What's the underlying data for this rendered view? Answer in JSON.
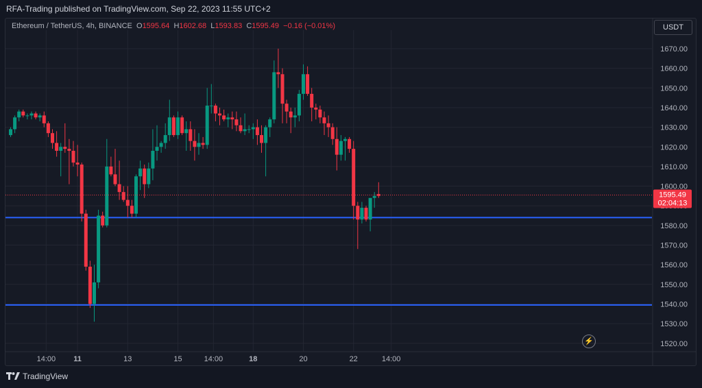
{
  "header": {
    "published_text": "RFA-Trading published on TradingView.com, Sep 22, 2023 11:55 UTC+2"
  },
  "legend": {
    "symbol": "Ethereum / TetherUS, 4h, BINANCE",
    "open_label": "O",
    "open": "1595.64",
    "high_label": "H",
    "high": "1602.68",
    "low_label": "L",
    "low": "1593.83",
    "close_label": "C",
    "close": "1595.49",
    "change": "−0.16 (−0.01%)"
  },
  "currency_button": "USDT",
  "price_tag": {
    "price": "1595.49",
    "countdown": "02:04:13"
  },
  "footer": {
    "brand": "TradingView"
  },
  "colors": {
    "up": "#089981",
    "down": "#f23645",
    "level_line": "#2962ff",
    "background": "#161a25"
  },
  "icons": {
    "replay": "lightning-bolt-icon",
    "logo": "tradingview-logo-icon"
  },
  "chart_data": {
    "type": "candlestick",
    "title": "Ethereum / TetherUS, 4h, BINANCE",
    "ylim": [
      1515,
      1680
    ],
    "y_ticks": [
      "1670.00",
      "1660.00",
      "1650.00",
      "1640.00",
      "1630.00",
      "1620.00",
      "1610.00",
      "1600.00",
      "1590.00",
      "1580.00",
      "1570.00",
      "1560.00",
      "1550.00",
      "1540.00",
      "1530.00",
      "1520.00"
    ],
    "x_ticks": [
      {
        "label": "14:00",
        "index": 8.5,
        "bold": false
      },
      {
        "label": "11",
        "index": 16,
        "bold": true
      },
      {
        "label": "13",
        "index": 28,
        "bold": false
      },
      {
        "label": "15",
        "index": 40,
        "bold": false
      },
      {
        "label": "14:00",
        "index": 48.5,
        "bold": false
      },
      {
        "label": "18",
        "index": 58,
        "bold": true
      },
      {
        "label": "20",
        "index": 70,
        "bold": false
      },
      {
        "label": "22",
        "index": 82,
        "bold": false
      },
      {
        "label": "14:00",
        "index": 91,
        "bold": false
      }
    ],
    "horizontal_levels": [
      1584,
      1539.5
    ],
    "last_price": 1595.49,
    "candles": [
      [
        1626,
        1630,
        1625,
        1629
      ],
      [
        1629,
        1636,
        1627,
        1635
      ],
      [
        1635,
        1639,
        1633,
        1638
      ],
      [
        1638,
        1639,
        1635,
        1636
      ],
      [
        1636,
        1637,
        1634,
        1636
      ],
      [
        1636,
        1638,
        1634,
        1637
      ],
      [
        1637,
        1638,
        1634,
        1635
      ],
      [
        1635,
        1637,
        1633,
        1636
      ],
      [
        1636,
        1638,
        1630,
        1632
      ],
      [
        1632,
        1633,
        1625,
        1627
      ],
      [
        1627,
        1629,
        1619,
        1622
      ],
      [
        1622,
        1628,
        1615,
        1618
      ],
      [
        1618,
        1622,
        1605,
        1620
      ],
      [
        1620,
        1632,
        1617,
        1619
      ],
      [
        1619,
        1624,
        1601,
        1618
      ],
      [
        1618,
        1623,
        1610,
        1612
      ],
      [
        1612,
        1621,
        1605,
        1611
      ],
      [
        1611,
        1612,
        1582,
        1586
      ],
      [
        1586,
        1588,
        1557,
        1559
      ],
      [
        1559,
        1562,
        1538,
        1540
      ],
      [
        1540,
        1560,
        1531,
        1551
      ],
      [
        1551,
        1588,
        1548,
        1585
      ],
      [
        1585,
        1587,
        1579,
        1580
      ],
      [
        1580,
        1624,
        1579,
        1610
      ],
      [
        1610,
        1615,
        1605,
        1606
      ],
      [
        1606,
        1619,
        1600,
        1601
      ],
      [
        1601,
        1613,
        1593,
        1597
      ],
      [
        1597,
        1600,
        1592,
        1593
      ],
      [
        1593,
        1600,
        1584,
        1590
      ],
      [
        1590,
        1593,
        1584,
        1586
      ],
      [
        1586,
        1606,
        1584,
        1605
      ],
      [
        1605,
        1613,
        1598,
        1609
      ],
      [
        1609,
        1611,
        1594,
        1601
      ],
      [
        1601,
        1612,
        1599,
        1609
      ],
      [
        1609,
        1629,
        1603,
        1618
      ],
      [
        1618,
        1631,
        1613,
        1620
      ],
      [
        1620,
        1623,
        1617,
        1622
      ],
      [
        1622,
        1632,
        1619,
        1626
      ],
      [
        1626,
        1644,
        1623,
        1635
      ],
      [
        1635,
        1636,
        1625,
        1626
      ],
      [
        1626,
        1638,
        1624,
        1635
      ],
      [
        1635,
        1636,
        1626,
        1627
      ],
      [
        1627,
        1633,
        1618,
        1629
      ],
      [
        1629,
        1633,
        1618,
        1623
      ],
      [
        1623,
        1629,
        1613,
        1620
      ],
      [
        1620,
        1627,
        1616,
        1622
      ],
      [
        1622,
        1625,
        1619,
        1621
      ],
      [
        1621,
        1650,
        1619,
        1641
      ],
      [
        1641,
        1652,
        1637,
        1641
      ],
      [
        1641,
        1642,
        1633,
        1637
      ],
      [
        1637,
        1640,
        1631,
        1636
      ],
      [
        1636,
        1639,
        1633,
        1634
      ],
      [
        1634,
        1637,
        1630,
        1635
      ],
      [
        1635,
        1638,
        1629,
        1634
      ],
      [
        1634,
        1638,
        1628,
        1631
      ],
      [
        1631,
        1635,
        1627,
        1628
      ],
      [
        1628,
        1637,
        1626,
        1629
      ],
      [
        1629,
        1631,
        1627,
        1629
      ],
      [
        1629,
        1632,
        1624,
        1630
      ],
      [
        1630,
        1634,
        1621,
        1626
      ],
      [
        1626,
        1631,
        1617,
        1622
      ],
      [
        1622,
        1631,
        1605,
        1630
      ],
      [
        1630,
        1635,
        1625,
        1634
      ],
      [
        1634,
        1664,
        1632,
        1658
      ],
      [
        1658,
        1670,
        1650,
        1657
      ],
      [
        1657,
        1660,
        1632,
        1642
      ],
      [
        1642,
        1644,
        1632,
        1638
      ],
      [
        1638,
        1640,
        1627,
        1635
      ],
      [
        1635,
        1640,
        1630,
        1636
      ],
      [
        1636,
        1649,
        1633,
        1647
      ],
      [
        1647,
        1662,
        1644,
        1657
      ],
      [
        1657,
        1661,
        1646,
        1647
      ],
      [
        1647,
        1650,
        1633,
        1640
      ],
      [
        1640,
        1642,
        1634,
        1639
      ],
      [
        1639,
        1641,
        1632,
        1635
      ],
      [
        1635,
        1638,
        1626,
        1632
      ],
      [
        1632,
        1636,
        1625,
        1630
      ],
      [
        1630,
        1632,
        1621,
        1624
      ],
      [
        1624,
        1630,
        1608,
        1616
      ],
      [
        1616,
        1626,
        1613,
        1623
      ],
      [
        1623,
        1625,
        1613,
        1624
      ],
      [
        1624,
        1625,
        1617,
        1619
      ],
      [
        1619,
        1623,
        1583,
        1590
      ],
      [
        1590,
        1592,
        1568,
        1583
      ],
      [
        1583,
        1592,
        1581,
        1589
      ],
      [
        1589,
        1590,
        1582,
        1583
      ],
      [
        1583,
        1593,
        1577,
        1594
      ],
      [
        1594,
        1597,
        1589,
        1595
      ],
      [
        1596,
        1602,
        1594,
        1595
      ]
    ]
  }
}
